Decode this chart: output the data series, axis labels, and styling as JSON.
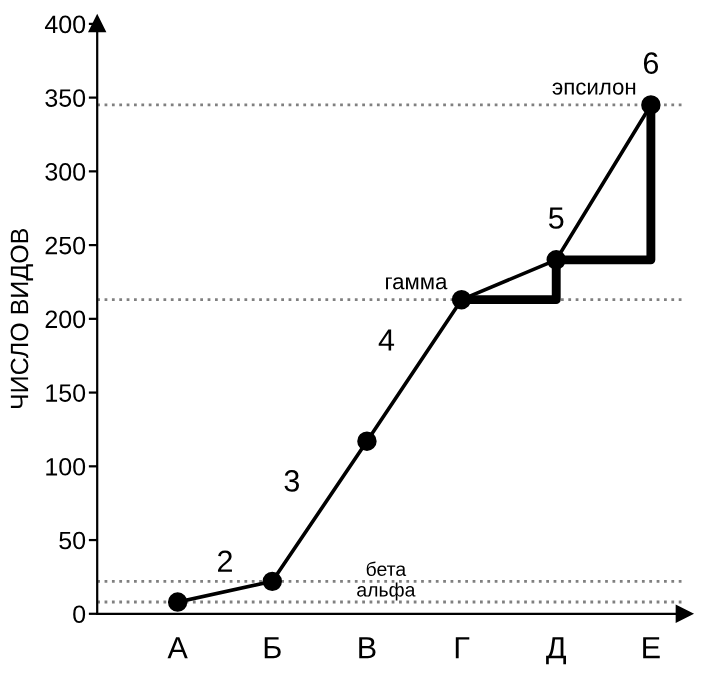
{
  "chart_data": {
    "type": "line",
    "ylabel": "ЧИСЛО ВИДОВ",
    "categories": [
      "А",
      "Б",
      "В",
      "Г",
      "Д",
      "Е"
    ],
    "series": [
      {
        "color": "#000000",
        "marker": "circle",
        "values": [
          8,
          22,
          117,
          213,
          240,
          345
        ]
      },
      {
        "type": "step",
        "color": "#000000",
        "marker": "none",
        "values": [
          null,
          null,
          null,
          213,
          240,
          345
        ]
      }
    ],
    "ylim": [
      0,
      400
    ],
    "yticks": [
      0,
      50,
      100,
      150,
      200,
      250,
      300,
      350,
      400
    ],
    "ref_lines": [
      {
        "axis": "y",
        "value": 8,
        "label": "альфа",
        "color": "#808080",
        "line_style": "dotted"
      },
      {
        "axis": "y",
        "value": 22,
        "label": "бета",
        "color": "#808080",
        "line_style": "dotted"
      },
      {
        "axis": "y",
        "value": 213,
        "label": "гамма",
        "color": "#808080",
        "line_style": "dotted"
      },
      {
        "axis": "y",
        "value": 345,
        "label": "эпсилон",
        "color": "#808080",
        "line_style": "dotted"
      }
    ],
    "annotations": [
      "2",
      "3",
      "4",
      "5",
      "6"
    ],
    "grid": false,
    "legend": false
  }
}
